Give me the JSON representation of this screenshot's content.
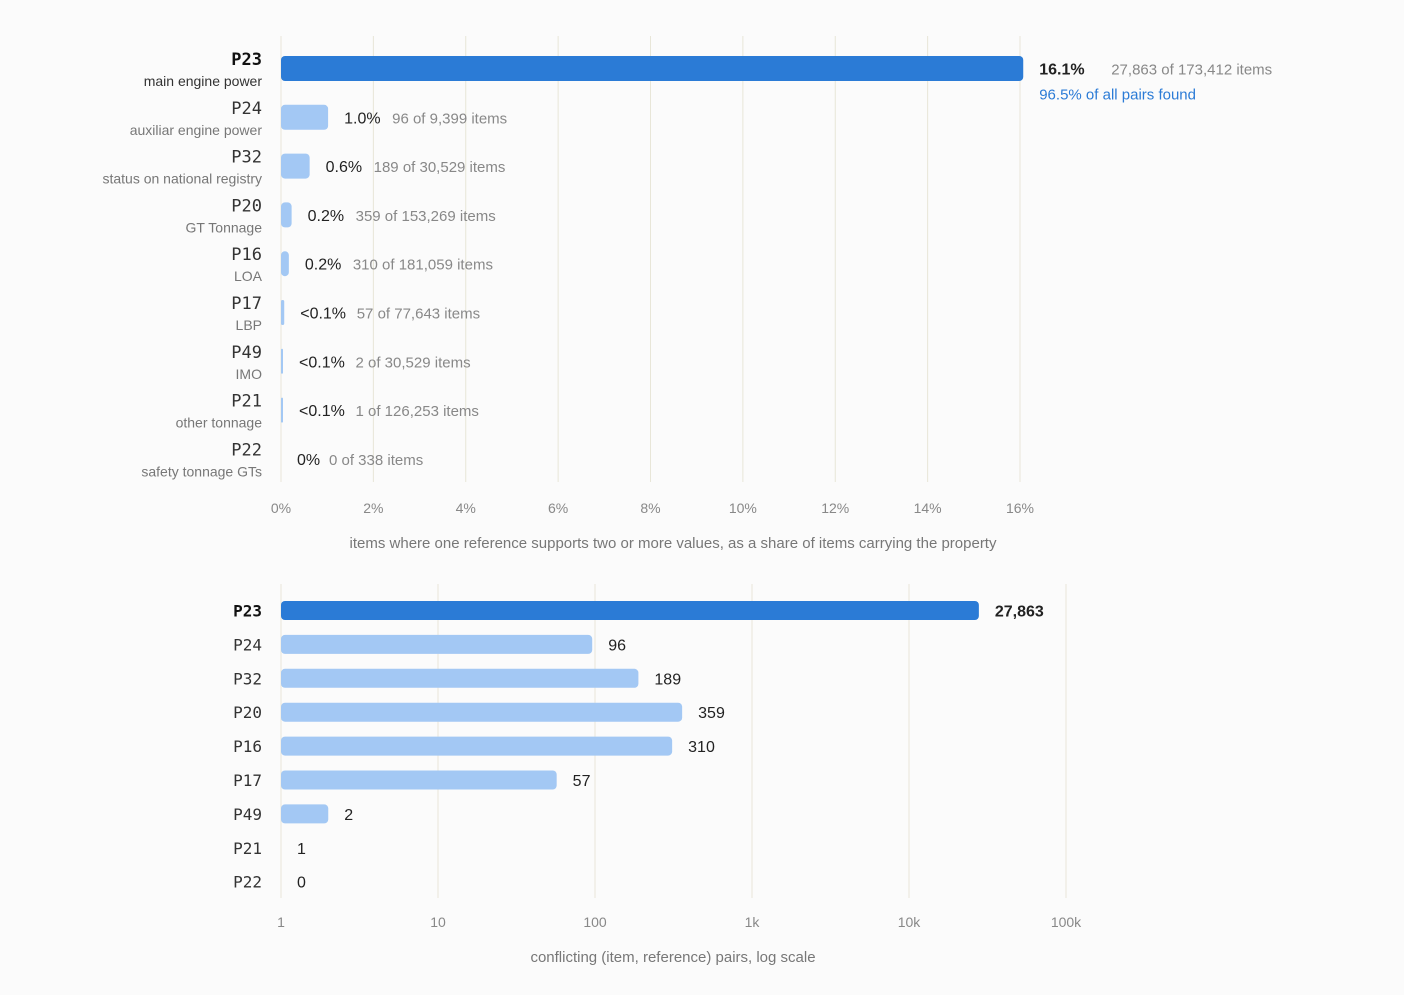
{
  "colors": {
    "highlight": "#2b7bd6",
    "bar": "#a3c8f4",
    "grid": "#e8e6d8",
    "found": "#2b7bd6"
  },
  "chart_data": [
    {
      "type": "bar",
      "orientation": "horizontal",
      "xlabel": "items where one reference supports two or more values, as a share of items carrying the property",
      "xlim": [
        0,
        16
      ],
      "x_ticks": [
        "0%",
        "2%",
        "4%",
        "6%",
        "8%",
        "10%",
        "12%",
        "14%",
        "16%"
      ],
      "grid": true,
      "rows": [
        {
          "id": "P23",
          "name": "main engine power",
          "value": 16.07,
          "pct_label": "16.1%",
          "detail": "27,863 of 173,412 items",
          "note": "96.5% of all pairs found",
          "highlight": true
        },
        {
          "id": "P24",
          "name": "auxiliar engine power",
          "value": 1.02,
          "pct_label": "1.0%",
          "detail": "96 of 9,399 items",
          "highlight": false
        },
        {
          "id": "P32",
          "name": "status on national registry",
          "value": 0.62,
          "pct_label": "0.6%",
          "detail": "189 of 30,529 items",
          "highlight": false
        },
        {
          "id": "P20",
          "name": "GT Tonnage",
          "value": 0.23,
          "pct_label": "0.2%",
          "detail": "359 of 153,269 items",
          "highlight": false
        },
        {
          "id": "P16",
          "name": "LOA",
          "value": 0.17,
          "pct_label": "0.2%",
          "detail": "310 of 181,059 items",
          "highlight": false
        },
        {
          "id": "P17",
          "name": "LBP",
          "value": 0.07,
          "pct_label": "<0.1%",
          "detail": "57 of 77,643 items",
          "highlight": false
        },
        {
          "id": "P49",
          "name": "IMO",
          "value": 0.007,
          "pct_label": "<0.1%",
          "detail": "2 of 30,529 items",
          "highlight": false
        },
        {
          "id": "P21",
          "name": "other tonnage",
          "value": 0.0008,
          "pct_label": "<0.1%",
          "detail": "1 of 126,253 items",
          "highlight": false
        },
        {
          "id": "P22",
          "name": "safety tonnage GTs",
          "value": 0,
          "pct_label": "0%",
          "detail": "0 of 338 items",
          "highlight": false
        }
      ]
    },
    {
      "type": "bar",
      "orientation": "horizontal",
      "scale": "log",
      "xlabel": "conflicting (item, reference) pairs, log scale",
      "xlim": [
        1,
        100000
      ],
      "x_ticks": [
        "1",
        "10",
        "100",
        "1k",
        "10k",
        "100k"
      ],
      "grid": true,
      "rows": [
        {
          "id": "P23",
          "value": 27863,
          "label": "27,863",
          "highlight": true
        },
        {
          "id": "P24",
          "value": 96,
          "label": "96",
          "highlight": false
        },
        {
          "id": "P32",
          "value": 189,
          "label": "189",
          "highlight": false
        },
        {
          "id": "P20",
          "value": 359,
          "label": "359",
          "highlight": false
        },
        {
          "id": "P16",
          "value": 310,
          "label": "310",
          "highlight": false
        },
        {
          "id": "P17",
          "value": 57,
          "label": "57",
          "highlight": false
        },
        {
          "id": "P49",
          "value": 2,
          "label": "2",
          "highlight": false
        },
        {
          "id": "P21",
          "value": 1,
          "label": "1",
          "highlight": false
        },
        {
          "id": "P22",
          "value": 0,
          "label": "0",
          "highlight": false
        }
      ]
    }
  ]
}
